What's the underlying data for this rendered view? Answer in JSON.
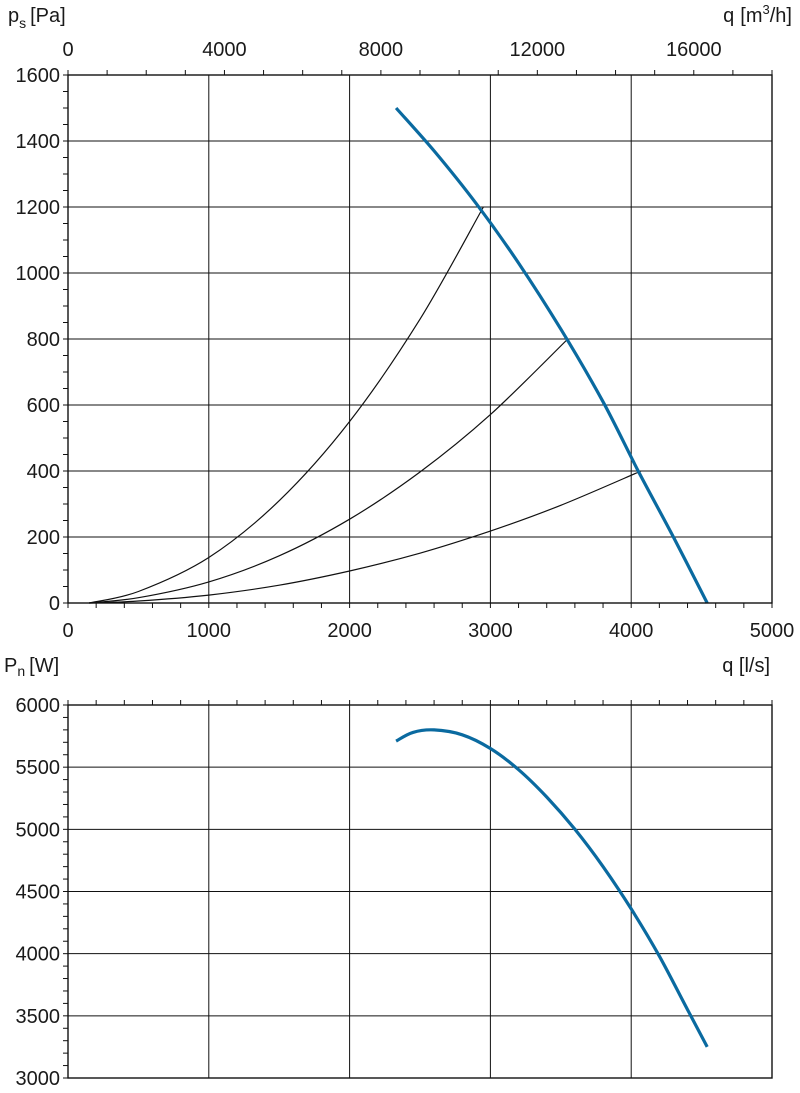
{
  "colors": {
    "curve": "#0a6aa0",
    "system_curve": "#111111",
    "grid": "#111111",
    "frame": "#111111"
  },
  "chart_data": [
    {
      "type": "line",
      "title": "",
      "ylabel": {
        "symbol": "p",
        "subscript": "s",
        "unit": "[Pa]"
      },
      "xlabel_top": {
        "symbol": "q",
        "unit_prefix": "[m",
        "unit_sup": "3",
        "unit_suffix": "/h]"
      },
      "xlabel_bottom": "",
      "xlim": [
        0,
        5000
      ],
      "xlim_top": [
        0,
        18000
      ],
      "ylim": [
        0,
        1600
      ],
      "x_ticks": [
        "0",
        "1000",
        "2000",
        "3000",
        "4000",
        "5000"
      ],
      "x_ticks_top": [
        "0",
        "4000",
        "8000",
        "12000",
        "16000"
      ],
      "y_ticks": [
        "0",
        "200",
        "400",
        "600",
        "800",
        "1000",
        "1200",
        "1400",
        "1600"
      ],
      "grid": true,
      "series": [
        {
          "role": "fan-curve",
          "x": [
            2330,
            2600,
            2900,
            3200,
            3500,
            3800,
            4050,
            4300,
            4540
          ],
          "y": [
            1500,
            1370,
            1210,
            1030,
            830,
            610,
            400,
            200,
            0
          ]
        },
        {
          "role": "system-curve",
          "x": [
            150,
            500,
            1000,
            1500,
            2000,
            2500,
            2950
          ],
          "y": [
            0,
            35,
            138,
            310,
            550,
            860,
            1200
          ]
        },
        {
          "role": "system-curve",
          "x": [
            150,
            500,
            1000,
            1500,
            2000,
            2500,
            3000,
            3550
          ],
          "y": [
            0,
            16,
            64,
            143,
            254,
            397,
            571,
            800
          ]
        },
        {
          "role": "system-curve",
          "x": [
            150,
            500,
            1000,
            1500,
            2000,
            2500,
            3000,
            3500,
            4070
          ],
          "y": [
            0,
            6,
            24,
            54,
            97,
            151,
            218,
            296,
            400
          ]
        }
      ]
    },
    {
      "type": "line",
      "title": "",
      "ylabel": {
        "symbol": "P",
        "subscript": "n",
        "unit": "[W]"
      },
      "xlabel": "q [l/s]",
      "xlim": [
        0,
        5000
      ],
      "ylim": [
        3000,
        6000
      ],
      "y_ticks": [
        "3000",
        "3500",
        "4000",
        "4500",
        "5000",
        "5500",
        "6000"
      ],
      "grid": true,
      "series": [
        {
          "role": "power-curve",
          "x": [
            2330,
            2450,
            2600,
            2800,
            3000,
            3200,
            3400,
            3600,
            3800,
            4000,
            4200,
            4400,
            4540
          ],
          "y": [
            5710,
            5780,
            5800,
            5760,
            5650,
            5480,
            5260,
            5000,
            4700,
            4360,
            3980,
            3550,
            3250
          ]
        }
      ]
    }
  ]
}
